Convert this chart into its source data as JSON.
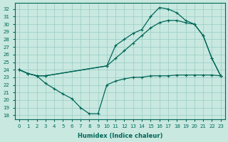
{
  "xlabel": "Humidex (Indice chaleur)",
  "bg_color": "#c8e8e0",
  "grid_color": "#98ccc4",
  "line_color": "#006858",
  "x_ticks": [
    0,
    1,
    2,
    3,
    4,
    5,
    6,
    7,
    8,
    9,
    10,
    11,
    12,
    13,
    14,
    15,
    16,
    17,
    18,
    19,
    20,
    21,
    22,
    23
  ],
  "y_ticks": [
    18,
    19,
    20,
    21,
    22,
    23,
    24,
    25,
    26,
    27,
    28,
    29,
    30,
    31,
    32
  ],
  "ylim": [
    17.5,
    32.8
  ],
  "xlim": [
    -0.5,
    23.5
  ],
  "line1_x": [
    0,
    1,
    2,
    3,
    10,
    11,
    12,
    13,
    14,
    15,
    16,
    17,
    18,
    19,
    20,
    21,
    22,
    23
  ],
  "line1_y": [
    24.0,
    23.5,
    23.2,
    23.2,
    24.5,
    25.5,
    26.5,
    27.5,
    28.5,
    29.5,
    30.2,
    30.5,
    30.5,
    30.2,
    30.0,
    28.5,
    25.5,
    23.2
  ],
  "line2_x": [
    0,
    1,
    2,
    3,
    10,
    11,
    12,
    13,
    14,
    15,
    16,
    17,
    18,
    19,
    20,
    21,
    22,
    23
  ],
  "line2_y": [
    24.0,
    23.5,
    23.2,
    23.2,
    24.5,
    27.2,
    28.0,
    28.8,
    29.3,
    31.0,
    32.2,
    32.0,
    31.5,
    30.5,
    30.0,
    28.5,
    25.5,
    23.2
  ],
  "line3_x": [
    0,
    1,
    2,
    3,
    4,
    5,
    6,
    7,
    8,
    9,
    10,
    11,
    12,
    13,
    14,
    15,
    16,
    17,
    18,
    19,
    20,
    21,
    22,
    23
  ],
  "line3_y": [
    24.0,
    23.5,
    23.2,
    22.2,
    21.5,
    20.8,
    20.2,
    19.0,
    18.2,
    18.2,
    22.0,
    22.5,
    22.8,
    23.0,
    23.0,
    23.2,
    23.2,
    23.2,
    23.3,
    23.3,
    23.3,
    23.3,
    23.3,
    23.2
  ]
}
